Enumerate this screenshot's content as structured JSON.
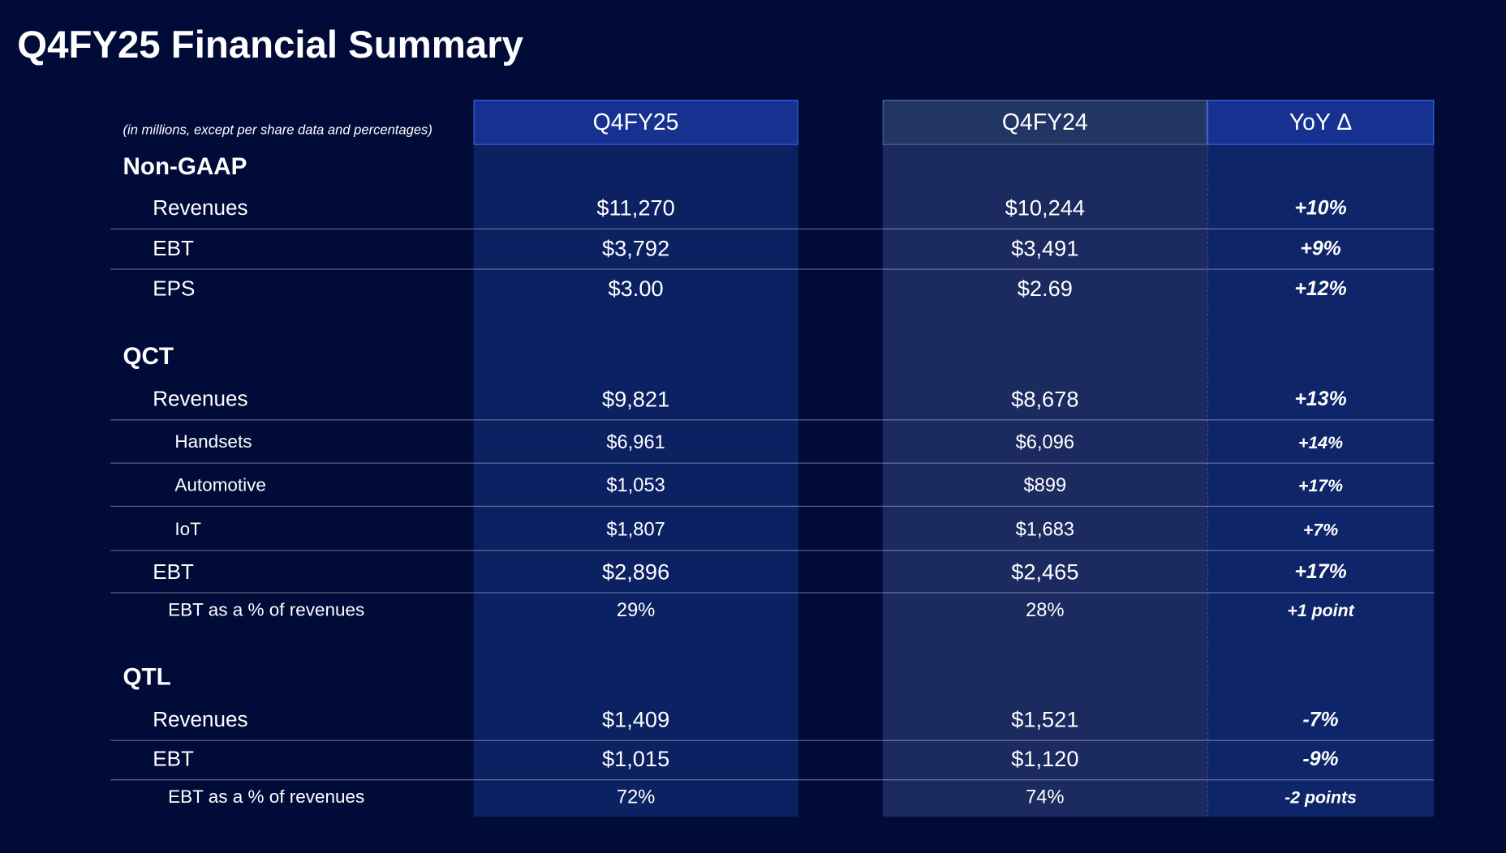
{
  "title": "Q4FY25 Financial Summary",
  "table": {
    "note": "(in millions, except per share data and percentages)",
    "columns": [
      "Q4FY25",
      "Q4FY24",
      "YoY Δ"
    ],
    "sections": [
      {
        "name": "Non-GAAP",
        "rows": [
          {
            "label": "Revenues",
            "values": [
              "$11,270",
              "$10,244",
              "+10%"
            ]
          },
          {
            "label": "EBT",
            "values": [
              "$3,792",
              "$3,491",
              "+9%"
            ]
          },
          {
            "label": "EPS",
            "values": [
              "$3.00",
              "$2.69",
              "+12%"
            ]
          }
        ]
      },
      {
        "name": "QCT",
        "rows": [
          {
            "label": "Revenues",
            "values": [
              "$9,821",
              "$8,678",
              "+13%"
            ]
          },
          {
            "label": "Handsets",
            "values": [
              "$6,961",
              "$6,096",
              "+14%"
            ]
          },
          {
            "label": "Automotive",
            "values": [
              "$1,053",
              "$899",
              "+17%"
            ]
          },
          {
            "label": "IoT",
            "values": [
              "$1,807",
              "$1,683",
              "+7%"
            ]
          },
          {
            "label": "EBT",
            "values": [
              "$2,896",
              "$2,465",
              "+17%"
            ]
          },
          {
            "label": "EBT as a % of revenues",
            "values": [
              "29%",
              "28%",
              "+1 point"
            ]
          }
        ]
      },
      {
        "name": "QTL",
        "rows": [
          {
            "label": "Revenues",
            "values": [
              "$1,409",
              "$1,521",
              "-7%"
            ]
          },
          {
            "label": "EBT",
            "values": [
              "$1,015",
              "$1,120",
              "-9%"
            ]
          },
          {
            "label": "EBT as a % of revenues",
            "values": [
              "72%",
              "74%",
              "-2 points"
            ]
          }
        ]
      }
    ]
  }
}
